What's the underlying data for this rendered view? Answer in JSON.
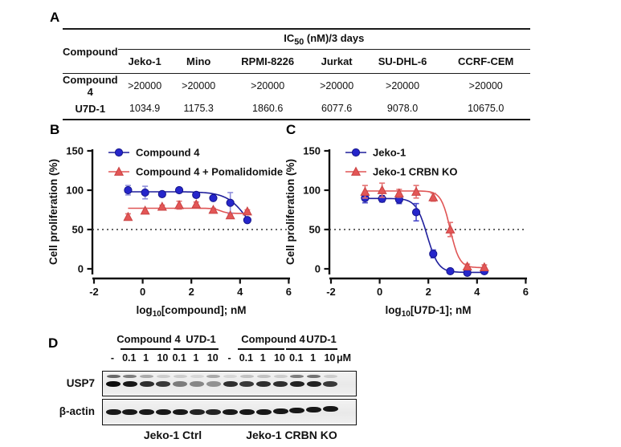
{
  "panels": {
    "a": {
      "label": "A",
      "table": {
        "row_header": "Compound",
        "span_header": "IC50 (nM)/3 days",
        "span_header_parts": {
          "pre": "IC",
          "sub": "50",
          "post": " (nM)/3 days"
        },
        "columns": [
          "Jeko-1",
          "Mino",
          "RPMI-8226",
          "Jurkat",
          "SU-DHL-6",
          "CCRF-CEM"
        ],
        "rows": [
          {
            "name": "Compound 4",
            "values": [
              ">20000",
              ">20000",
              ">20000",
              ">20000",
              ">20000",
              ">20000"
            ]
          },
          {
            "name": "U7D-1",
            "values": [
              "1034.9",
              "1175.3",
              "1860.6",
              "6077.6",
              "9078.0",
              "10675.0"
            ]
          }
        ]
      }
    },
    "b": {
      "label": "B"
    },
    "c": {
      "label": "C"
    },
    "d": {
      "label": "D",
      "group_headers": [
        "Compound 4",
        "U7D-1",
        "Compound 4",
        "U7D-1"
      ],
      "dose_labels": [
        "-",
        "0.1",
        "1",
        "10",
        "0.1",
        "1",
        "10",
        "-",
        "0.1",
        "1",
        "10",
        "0.1",
        "1",
        "10"
      ],
      "unit_label": "μM",
      "row_labels": [
        "USP7",
        "β-actin"
      ],
      "condition_labels": [
        "Jeko-1 Ctrl",
        "Jeko-1 CRBN KO"
      ],
      "usp7_lanes": [
        {
          "main": 1.0,
          "upper": 0.6
        },
        {
          "main": 0.95,
          "upper": 0.5
        },
        {
          "main": 0.85,
          "upper": 0.3
        },
        {
          "main": 0.8,
          "upper": 0.15
        },
        {
          "main": 0.5,
          "upper": 0.15
        },
        {
          "main": 0.45,
          "upper": 0.1
        },
        {
          "main": 0.4,
          "upper": 0.3
        },
        {
          "main": 0.85,
          "upper": 0.1
        },
        {
          "main": 0.8,
          "upper": 0.2
        },
        {
          "main": 0.85,
          "upper": 0.2
        },
        {
          "main": 0.85,
          "upper": 0.15
        },
        {
          "main": 0.9,
          "upper": 0.5
        },
        {
          "main": 0.9,
          "upper": 0.55
        },
        {
          "main": 0.8,
          "upper": 0.15
        }
      ],
      "actin_lanes": [
        0.95,
        0.95,
        0.95,
        0.95,
        0.95,
        0.9,
        0.9,
        0.95,
        0.95,
        0.95,
        0.95,
        0.95,
        0.95,
        0.95
      ]
    }
  },
  "chart_data": [
    {
      "type": "line",
      "panel": "B",
      "title": "",
      "xlabel": "log10[compound]; nM",
      "xlabel_parts": {
        "pre": "log",
        "sub": "10",
        "post": "[compound]; nM"
      },
      "ylabel": "Cell proliferation (%)",
      "xlim": [
        -2,
        6
      ],
      "ylim": [
        0,
        150
      ],
      "xticks": [
        -2,
        0,
        2,
        4,
        6
      ],
      "yticks": [
        0,
        50,
        100,
        150
      ],
      "grid": false,
      "legend_position": "top-left",
      "reference_line_y": 50,
      "x": [
        -0.6,
        0.1,
        0.8,
        1.5,
        2.2,
        2.9,
        3.6,
        4.3
      ],
      "series": [
        {
          "name": "Compound 4",
          "marker": "circle",
          "color": "#2626cb",
          "stroke": "#15158a",
          "line_color": "#1f1f9c",
          "err_color": "#8f8fdb",
          "values": [
            100,
            97,
            95,
            100,
            94,
            90,
            84,
            62
          ],
          "errors": [
            6,
            8,
            3,
            3,
            2,
            2,
            13,
            2
          ],
          "fit": {
            "top": 98,
            "bottom": 25,
            "logec50": 4.35,
            "hill": 1.0
          }
        },
        {
          "name": "Compound 4 + Pomalidomide",
          "marker": "triangle",
          "color": "#e35656",
          "stroke": "#c94343",
          "line_color": "#e05555",
          "err_color": "#e57272",
          "values": [
            66,
            74,
            79,
            81,
            82,
            75,
            68,
            73
          ],
          "errors": [
            4,
            3,
            2,
            5,
            3,
            2,
            2,
            2
          ],
          "fit": {
            "top": 77,
            "bottom": 70.5,
            "logec50": 3.2,
            "hill": 3.0
          }
        }
      ]
    },
    {
      "type": "line",
      "panel": "C",
      "title": "",
      "xlabel": "log10[U7D-1]; nM",
      "xlabel_parts": {
        "pre": "log",
        "sub": "10",
        "post": "[U7D-1]; nM"
      },
      "ylabel": "Cell proliferation (%)",
      "xlim": [
        -2,
        6
      ],
      "ylim": [
        0,
        150
      ],
      "xticks": [
        -2,
        0,
        2,
        4,
        6
      ],
      "yticks": [
        0,
        50,
        100,
        150
      ],
      "grid": false,
      "legend_position": "top-left",
      "reference_line_y": 50,
      "x": [
        -0.6,
        0.1,
        0.8,
        1.5,
        2.2,
        2.9,
        3.6,
        4.3
      ],
      "series": [
        {
          "name": "Jeko-1",
          "marker": "circle",
          "color": "#2626cb",
          "stroke": "#15158a",
          "line_color": "#1f1f9c",
          "err_color": "#4a4acb",
          "values": [
            90,
            89,
            88,
            72,
            19,
            -3,
            -5,
            -3
          ],
          "errors": [
            6,
            4,
            5,
            11,
            5,
            2,
            2,
            3
          ],
          "fit": {
            "top": 89.5,
            "bottom": -4.5,
            "logec50": 1.95,
            "hill": 1.9
          }
        },
        {
          "name": "Jeko-1 CRBN KO",
          "marker": "triangle",
          "color": "#e35656",
          "stroke": "#c94343",
          "line_color": "#e05555",
          "err_color": "#e57272",
          "values": [
            98,
            100,
            96,
            98,
            91,
            50,
            3,
            2
          ],
          "errors": [
            8,
            9,
            5,
            8,
            5,
            9,
            3,
            3
          ],
          "fit": {
            "top": 99,
            "bottom": 1.5,
            "logec50": 2.9,
            "hill": 2.3
          }
        }
      ]
    }
  ]
}
